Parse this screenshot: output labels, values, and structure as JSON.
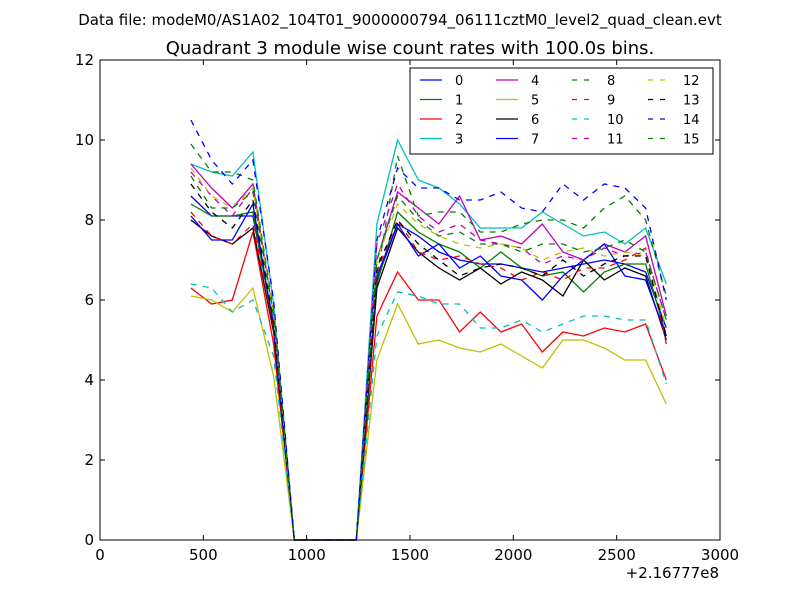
{
  "figure": {
    "suptitle": "Data file: modeM0/AS1A02_104T01_9000000794_06111cztM0_level2_quad_clean.evt"
  },
  "chart_data": {
    "type": "line",
    "title": "Quadrant 3 module wise count rates with 100.0s bins.",
    "xlabel": "",
    "ylabel": "",
    "x_offset_label": "+2.16777e8",
    "xlim": [
      0,
      3000
    ],
    "ylim": [
      0,
      12
    ],
    "xticks": [
      0,
      500,
      1000,
      1500,
      2000,
      2500,
      3000
    ],
    "yticks": [
      0,
      2,
      4,
      6,
      8,
      10,
      12
    ],
    "grid": false,
    "legend": {
      "placement": "top-right",
      "columns": 4
    },
    "x": [
      440,
      540,
      640,
      740,
      840,
      940,
      1040,
      1140,
      1240,
      1340,
      1440,
      1540,
      1640,
      1740,
      1840,
      1940,
      2040,
      2140,
      2240,
      2340,
      2440,
      2540,
      2640,
      2740
    ],
    "series": [
      {
        "name": "0",
        "color": "#0000ff",
        "dash": "solid",
        "values": [
          8.6,
          8.1,
          8.1,
          8.1,
          5.4,
          0,
          0,
          0,
          0,
          6.5,
          7.9,
          7.6,
          7.2,
          7.0,
          6.9,
          6.9,
          6.8,
          6.7,
          6.8,
          6.9,
          7.0,
          6.9,
          6.7,
          5.3
        ]
      },
      {
        "name": "1",
        "color": "#008000",
        "dash": "solid",
        "values": [
          8.4,
          8.1,
          8.1,
          8.2,
          5.3,
          0,
          0,
          0,
          0,
          6.4,
          8.2,
          7.7,
          7.4,
          7.2,
          6.8,
          7.2,
          6.8,
          6.6,
          6.7,
          6.2,
          6.7,
          6.9,
          6.9,
          5.1
        ]
      },
      {
        "name": "2",
        "color": "#ff0000",
        "dash": "solid",
        "values": [
          6.3,
          5.9,
          6.0,
          7.7,
          4.9,
          0,
          0,
          0,
          0,
          5.6,
          6.7,
          6.0,
          6.0,
          5.2,
          5.7,
          5.2,
          5.4,
          4.7,
          5.2,
          5.1,
          5.3,
          5.2,
          5.4,
          4.0
        ]
      },
      {
        "name": "3",
        "color": "#00bfbf",
        "dash": "solid",
        "values": [
          9.4,
          9.2,
          9.1,
          9.7,
          5.9,
          0,
          0,
          0,
          0,
          7.9,
          10.0,
          9.0,
          8.8,
          8.4,
          7.8,
          7.8,
          7.8,
          8.2,
          7.9,
          7.6,
          7.7,
          7.4,
          7.8,
          6.4
        ]
      },
      {
        "name": "4",
        "color": "#bf00bf",
        "dash": "solid",
        "values": [
          9.4,
          8.8,
          8.3,
          8.9,
          5.6,
          0,
          0,
          0,
          0,
          7.0,
          8.7,
          8.3,
          7.9,
          8.6,
          7.5,
          7.6,
          7.4,
          7.9,
          7.2,
          7.0,
          7.4,
          7.2,
          7.6,
          5.6
        ]
      },
      {
        "name": "5",
        "color": "#bfbf00",
        "dash": "solid",
        "values": [
          6.1,
          6.0,
          5.7,
          6.3,
          4.1,
          0,
          0,
          0,
          0,
          4.5,
          5.9,
          4.9,
          5.0,
          4.8,
          4.7,
          4.9,
          4.6,
          4.3,
          5.0,
          5.0,
          4.8,
          4.5,
          4.5,
          3.4
        ]
      },
      {
        "name": "6",
        "color": "#000000",
        "dash": "solid",
        "values": [
          8.0,
          7.6,
          7.4,
          7.8,
          5.2,
          0,
          0,
          0,
          0,
          6.3,
          7.8,
          7.2,
          6.8,
          6.5,
          6.8,
          6.4,
          6.7,
          6.5,
          6.1,
          7.0,
          6.5,
          6.8,
          6.6,
          5.0
        ]
      },
      {
        "name": "7",
        "color": "#0000ff",
        "dash": "solid",
        "values": [
          8.1,
          7.5,
          7.5,
          8.4,
          5.3,
          0,
          0,
          0,
          0,
          6.6,
          7.9,
          7.1,
          7.4,
          6.8,
          7.1,
          6.6,
          6.5,
          6.0,
          6.6,
          7.0,
          7.4,
          6.6,
          6.5,
          5.1
        ]
      },
      {
        "name": "8",
        "color": "#008000",
        "dash": "dashed",
        "values": [
          9.9,
          9.2,
          9.2,
          9.0,
          5.7,
          0,
          0,
          0,
          0,
          6.6,
          9.6,
          8.1,
          8.2,
          8.2,
          7.7,
          7.7,
          7.9,
          8.0,
          8.0,
          7.8,
          8.3,
          8.6,
          8.0,
          6.1
        ]
      },
      {
        "name": "9",
        "color": "#ff0000",
        "dash": "dashed",
        "values": [
          8.2,
          7.6,
          7.4,
          7.9,
          5.3,
          0,
          0,
          0,
          0,
          6.7,
          8.0,
          7.2,
          7.0,
          7.1,
          6.9,
          6.8,
          6.5,
          6.7,
          6.5,
          6.8,
          6.8,
          7.0,
          7.3,
          4.9
        ]
      },
      {
        "name": "10",
        "color": "#00bfbf",
        "dash": "dashed",
        "values": [
          6.4,
          6.3,
          5.7,
          6.0,
          4.6,
          0,
          0,
          0,
          0,
          5.1,
          6.2,
          6.1,
          5.9,
          5.9,
          5.3,
          5.3,
          5.5,
          5.2,
          5.4,
          5.6,
          5.6,
          5.5,
          5.5,
          3.9
        ]
      },
      {
        "name": "11",
        "color": "#bf00bf",
        "dash": "dashed",
        "values": [
          9.2,
          8.6,
          8.1,
          8.8,
          5.6,
          0,
          0,
          0,
          0,
          7.4,
          8.9,
          8.1,
          7.7,
          7.9,
          7.5,
          7.4,
          7.3,
          6.9,
          7.1,
          7.0,
          7.3,
          7.1,
          7.2,
          5.5
        ]
      },
      {
        "name": "12",
        "color": "#bfbf00",
        "dash": "dashed",
        "values": [
          9.3,
          8.6,
          8.3,
          8.8,
          5.6,
          0,
          0,
          0,
          0,
          7.0,
          8.4,
          7.9,
          7.6,
          7.4,
          7.3,
          7.4,
          7.3,
          7.0,
          7.2,
          7.3,
          7.1,
          7.2,
          7.1,
          5.3
        ]
      },
      {
        "name": "13",
        "color": "#000000",
        "dash": "dashed",
        "values": [
          8.9,
          8.2,
          7.8,
          8.5,
          5.4,
          0,
          0,
          0,
          0,
          6.8,
          8.0,
          7.4,
          7.0,
          6.6,
          6.8,
          6.9,
          6.8,
          6.6,
          7.0,
          6.6,
          6.9,
          7.1,
          7.1,
          5.1
        ]
      },
      {
        "name": "14",
        "color": "#0000ff",
        "dash": "dashed",
        "values": [
          10.5,
          9.5,
          8.9,
          9.5,
          6.0,
          0,
          0,
          0,
          0,
          7.5,
          9.3,
          8.8,
          8.8,
          8.5,
          8.5,
          8.7,
          8.3,
          8.2,
          8.9,
          8.5,
          8.9,
          8.8,
          8.3,
          6.0
        ]
      },
      {
        "name": "15",
        "color": "#008000",
        "dash": "dashed",
        "values": [
          9.1,
          8.3,
          8.3,
          8.7,
          5.6,
          0,
          0,
          0,
          0,
          7.0,
          8.6,
          8.0,
          7.6,
          7.7,
          7.4,
          7.4,
          7.2,
          7.4,
          7.4,
          7.2,
          7.3,
          7.5,
          7.2,
          5.5
        ]
      }
    ]
  }
}
